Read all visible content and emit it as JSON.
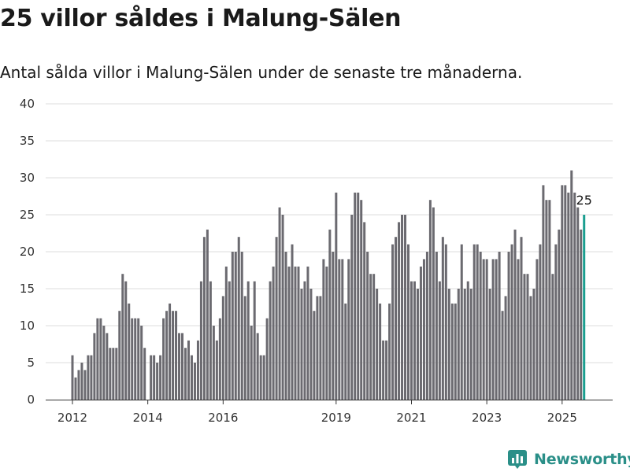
{
  "title": "25 villor såldes i Malung-Sälen",
  "subtitle": "Antal sålda villor i Malung-Sälen under de senaste tre månaderna.",
  "brand": "Newsworthy",
  "colors": {
    "bar": "#6b6a70",
    "highlight": "#1a9e8f",
    "grid": "#dddddd",
    "brand": "#2a8f88"
  },
  "chart_data": {
    "type": "bar",
    "title": "",
    "xlabel": "",
    "ylabel": "",
    "ylim": [
      0,
      40
    ],
    "grid": true,
    "y_ticks": [
      0,
      5,
      10,
      15,
      20,
      25,
      30,
      35,
      40
    ],
    "x_ticks": [
      "2012",
      "2014",
      "2016",
      "2019",
      "2021",
      "2023",
      "2025"
    ],
    "start": "2012-01",
    "end": "2025-08",
    "values": [
      6,
      3,
      4,
      5,
      4,
      6,
      6,
      9,
      11,
      11,
      10,
      9,
      7,
      7,
      7,
      12,
      17,
      16,
      13,
      11,
      11,
      11,
      10,
      7,
      0,
      6,
      6,
      5,
      6,
      11,
      12,
      13,
      12,
      12,
      9,
      9,
      7,
      8,
      6,
      5,
      8,
      16,
      22,
      23,
      16,
      10,
      8,
      11,
      14,
      18,
      16,
      20,
      20,
      22,
      20,
      14,
      16,
      10,
      16,
      9,
      6,
      6,
      11,
      16,
      18,
      22,
      26,
      25,
      20,
      18,
      21,
      18,
      18,
      15,
      16,
      18,
      15,
      12,
      14,
      14,
      19,
      18,
      23,
      20,
      28,
      19,
      19,
      13,
      19,
      25,
      28,
      28,
      27,
      24,
      20,
      17,
      17,
      15,
      13,
      8,
      8,
      13,
      21,
      22,
      24,
      25,
      25,
      21,
      16,
      16,
      15,
      18,
      19,
      20,
      27,
      26,
      20,
      16,
      22,
      21,
      15,
      13,
      13,
      15,
      21,
      15,
      16,
      15,
      21,
      21,
      20,
      19,
      19,
      15,
      19,
      19,
      20,
      12,
      14,
      20,
      21,
      23,
      19,
      22,
      17,
      17,
      14,
      15,
      19,
      21,
      29,
      27,
      27,
      17,
      21,
      23,
      29,
      29,
      28,
      31,
      28,
      26,
      23,
      25
    ],
    "highlight_last": true,
    "data_labels": [
      {
        "index": 163,
        "text": "25"
      }
    ]
  }
}
